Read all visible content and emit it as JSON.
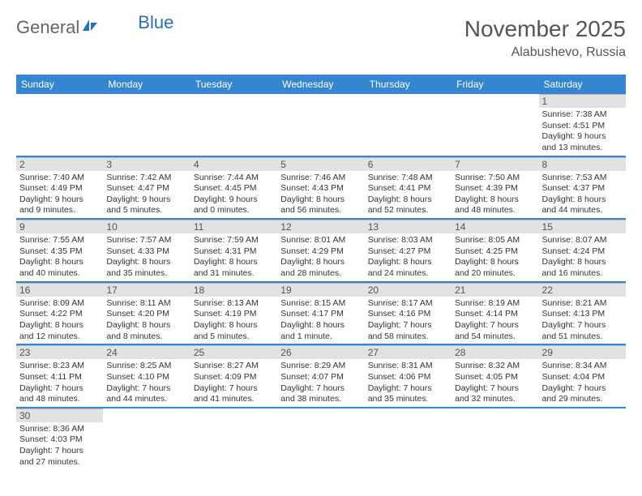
{
  "logo": {
    "part1": "General",
    "part2": "Blue"
  },
  "title": "November 2025",
  "location": "Alabushevo, Russia",
  "colors": {
    "header_bg": "#3486cf",
    "header_text": "#ffffff",
    "daynum_bg": "#e2e2e2",
    "row_border": "#3486cf",
    "text": "#333333",
    "title_text": "#555555"
  },
  "daysOfWeek": [
    "Sunday",
    "Monday",
    "Tuesday",
    "Wednesday",
    "Thursday",
    "Friday",
    "Saturday"
  ],
  "weeks": [
    [
      {
        "empty": true
      },
      {
        "empty": true
      },
      {
        "empty": true
      },
      {
        "empty": true
      },
      {
        "empty": true
      },
      {
        "empty": true
      },
      {
        "day": "1",
        "sunrise": "Sunrise: 7:38 AM",
        "sunset": "Sunset: 4:51 PM",
        "day1": "Daylight: 9 hours",
        "day2": "and 13 minutes."
      }
    ],
    [
      {
        "day": "2",
        "sunrise": "Sunrise: 7:40 AM",
        "sunset": "Sunset: 4:49 PM",
        "day1": "Daylight: 9 hours",
        "day2": "and 9 minutes."
      },
      {
        "day": "3",
        "sunrise": "Sunrise: 7:42 AM",
        "sunset": "Sunset: 4:47 PM",
        "day1": "Daylight: 9 hours",
        "day2": "and 5 minutes."
      },
      {
        "day": "4",
        "sunrise": "Sunrise: 7:44 AM",
        "sunset": "Sunset: 4:45 PM",
        "day1": "Daylight: 9 hours",
        "day2": "and 0 minutes."
      },
      {
        "day": "5",
        "sunrise": "Sunrise: 7:46 AM",
        "sunset": "Sunset: 4:43 PM",
        "day1": "Daylight: 8 hours",
        "day2": "and 56 minutes."
      },
      {
        "day": "6",
        "sunrise": "Sunrise: 7:48 AM",
        "sunset": "Sunset: 4:41 PM",
        "day1": "Daylight: 8 hours",
        "day2": "and 52 minutes."
      },
      {
        "day": "7",
        "sunrise": "Sunrise: 7:50 AM",
        "sunset": "Sunset: 4:39 PM",
        "day1": "Daylight: 8 hours",
        "day2": "and 48 minutes."
      },
      {
        "day": "8",
        "sunrise": "Sunrise: 7:53 AM",
        "sunset": "Sunset: 4:37 PM",
        "day1": "Daylight: 8 hours",
        "day2": "and 44 minutes."
      }
    ],
    [
      {
        "day": "9",
        "sunrise": "Sunrise: 7:55 AM",
        "sunset": "Sunset: 4:35 PM",
        "day1": "Daylight: 8 hours",
        "day2": "and 40 minutes."
      },
      {
        "day": "10",
        "sunrise": "Sunrise: 7:57 AM",
        "sunset": "Sunset: 4:33 PM",
        "day1": "Daylight: 8 hours",
        "day2": "and 35 minutes."
      },
      {
        "day": "11",
        "sunrise": "Sunrise: 7:59 AM",
        "sunset": "Sunset: 4:31 PM",
        "day1": "Daylight: 8 hours",
        "day2": "and 31 minutes."
      },
      {
        "day": "12",
        "sunrise": "Sunrise: 8:01 AM",
        "sunset": "Sunset: 4:29 PM",
        "day1": "Daylight: 8 hours",
        "day2": "and 28 minutes."
      },
      {
        "day": "13",
        "sunrise": "Sunrise: 8:03 AM",
        "sunset": "Sunset: 4:27 PM",
        "day1": "Daylight: 8 hours",
        "day2": "and 24 minutes."
      },
      {
        "day": "14",
        "sunrise": "Sunrise: 8:05 AM",
        "sunset": "Sunset: 4:25 PM",
        "day1": "Daylight: 8 hours",
        "day2": "and 20 minutes."
      },
      {
        "day": "15",
        "sunrise": "Sunrise: 8:07 AM",
        "sunset": "Sunset: 4:24 PM",
        "day1": "Daylight: 8 hours",
        "day2": "and 16 minutes."
      }
    ],
    [
      {
        "day": "16",
        "sunrise": "Sunrise: 8:09 AM",
        "sunset": "Sunset: 4:22 PM",
        "day1": "Daylight: 8 hours",
        "day2": "and 12 minutes."
      },
      {
        "day": "17",
        "sunrise": "Sunrise: 8:11 AM",
        "sunset": "Sunset: 4:20 PM",
        "day1": "Daylight: 8 hours",
        "day2": "and 8 minutes."
      },
      {
        "day": "18",
        "sunrise": "Sunrise: 8:13 AM",
        "sunset": "Sunset: 4:19 PM",
        "day1": "Daylight: 8 hours",
        "day2": "and 5 minutes."
      },
      {
        "day": "19",
        "sunrise": "Sunrise: 8:15 AM",
        "sunset": "Sunset: 4:17 PM",
        "day1": "Daylight: 8 hours",
        "day2": "and 1 minute."
      },
      {
        "day": "20",
        "sunrise": "Sunrise: 8:17 AM",
        "sunset": "Sunset: 4:16 PM",
        "day1": "Daylight: 7 hours",
        "day2": "and 58 minutes."
      },
      {
        "day": "21",
        "sunrise": "Sunrise: 8:19 AM",
        "sunset": "Sunset: 4:14 PM",
        "day1": "Daylight: 7 hours",
        "day2": "and 54 minutes."
      },
      {
        "day": "22",
        "sunrise": "Sunrise: 8:21 AM",
        "sunset": "Sunset: 4:13 PM",
        "day1": "Daylight: 7 hours",
        "day2": "and 51 minutes."
      }
    ],
    [
      {
        "day": "23",
        "sunrise": "Sunrise: 8:23 AM",
        "sunset": "Sunset: 4:11 PM",
        "day1": "Daylight: 7 hours",
        "day2": "and 48 minutes."
      },
      {
        "day": "24",
        "sunrise": "Sunrise: 8:25 AM",
        "sunset": "Sunset: 4:10 PM",
        "day1": "Daylight: 7 hours",
        "day2": "and 44 minutes."
      },
      {
        "day": "25",
        "sunrise": "Sunrise: 8:27 AM",
        "sunset": "Sunset: 4:09 PM",
        "day1": "Daylight: 7 hours",
        "day2": "and 41 minutes."
      },
      {
        "day": "26",
        "sunrise": "Sunrise: 8:29 AM",
        "sunset": "Sunset: 4:07 PM",
        "day1": "Daylight: 7 hours",
        "day2": "and 38 minutes."
      },
      {
        "day": "27",
        "sunrise": "Sunrise: 8:31 AM",
        "sunset": "Sunset: 4:06 PM",
        "day1": "Daylight: 7 hours",
        "day2": "and 35 minutes."
      },
      {
        "day": "28",
        "sunrise": "Sunrise: 8:32 AM",
        "sunset": "Sunset: 4:05 PM",
        "day1": "Daylight: 7 hours",
        "day2": "and 32 minutes."
      },
      {
        "day": "29",
        "sunrise": "Sunrise: 8:34 AM",
        "sunset": "Sunset: 4:04 PM",
        "day1": "Daylight: 7 hours",
        "day2": "and 29 minutes."
      }
    ],
    [
      {
        "day": "30",
        "sunrise": "Sunrise: 8:36 AM",
        "sunset": "Sunset: 4:03 PM",
        "day1": "Daylight: 7 hours",
        "day2": "and 27 minutes."
      },
      {
        "empty": true
      },
      {
        "empty": true
      },
      {
        "empty": true
      },
      {
        "empty": true
      },
      {
        "empty": true
      },
      {
        "empty": true
      }
    ]
  ]
}
